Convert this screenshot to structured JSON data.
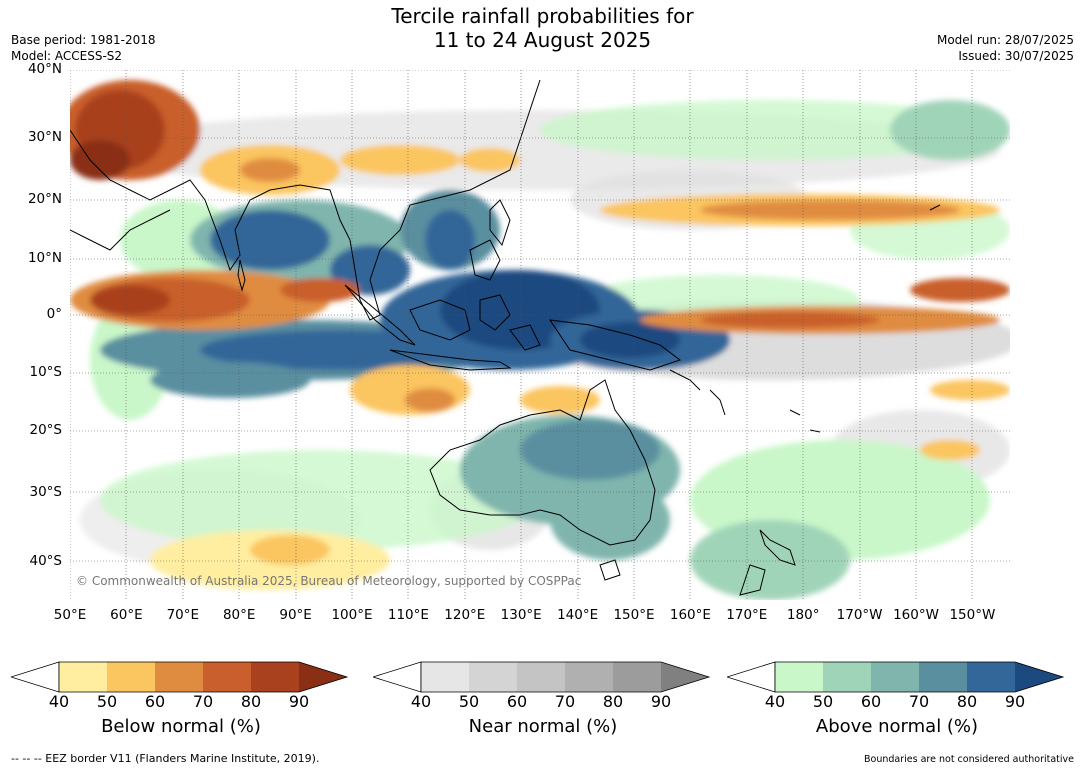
{
  "title": {
    "line1": "Tercile rainfall probabilities for",
    "line2": "11 to 24 August 2025"
  },
  "meta_left": {
    "base_period": "Base period: 1981-2018",
    "model": "Model: ACCESS-S2"
  },
  "meta_right": {
    "model_run": "Model run: 28/07/2025",
    "issued": "Issued: 30/07/2025"
  },
  "map": {
    "lat_labels": [
      "40°N",
      "30°N",
      "20°N",
      "10°N",
      "0°",
      "10°S",
      "20°S",
      "30°S",
      "40°S"
    ],
    "lon_labels": [
      "50°E",
      "60°E",
      "70°E",
      "80°E",
      "90°E",
      "100°E",
      "110°E",
      "120°E",
      "130°E",
      "140°E",
      "150°E",
      "160°E",
      "170°E",
      "180°",
      "170°W",
      "160°W",
      "150°W"
    ],
    "copyright": "© Commonwealth of Australia 2025, Bureau of Meteorology, supported by COSPPac"
  },
  "colorbars": [
    {
      "label": "Below normal (%)",
      "ticks": [
        "40",
        "50",
        "60",
        "70",
        "80",
        "90"
      ],
      "colors": [
        "#ffeea0",
        "#fbc560",
        "#e08c40",
        "#c95f2c",
        "#a9411f"
      ],
      "extend_color": "#8a2f14"
    },
    {
      "label": "Near normal (%)",
      "ticks": [
        "40",
        "50",
        "60",
        "70",
        "80",
        "90"
      ],
      "colors": [
        "#e6e6e6",
        "#d4d4d4",
        "#c4c4c4",
        "#b0b0b0",
        "#9c9c9c"
      ],
      "extend_color": "#808080"
    },
    {
      "label": "Above normal (%)",
      "ticks": [
        "40",
        "50",
        "60",
        "70",
        "80",
        "90"
      ],
      "colors": [
        "#c9f7c9",
        "#a0d4b8",
        "#7fb5ad",
        "#5a8fa0",
        "#336699"
      ],
      "extend_color": "#1c4a80"
    }
  ],
  "footer": {
    "eez": "--  --  -- EEZ border V11 (Flanders Marine Institute, 2019).",
    "boundaries": "Boundaries are not considered authoritative"
  }
}
